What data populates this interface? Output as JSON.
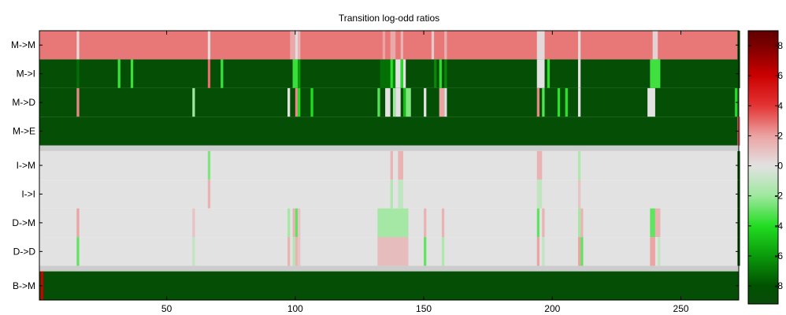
{
  "chart_data": {
    "type": "heatmap",
    "title": "Transition log-odd ratios",
    "xlabel": "",
    "ylabel": "",
    "rows": [
      "M->M",
      "M->I",
      "M->D",
      "M->E",
      "I->M",
      "I->I",
      "D->M",
      "D->D",
      "B->M"
    ],
    "x_range": [
      1,
      272
    ],
    "x_ticks": [
      50,
      100,
      150,
      200,
      250
    ],
    "x_tick_labels": [
      "50",
      "100",
      "150",
      "200",
      "250"
    ],
    "colorbar": {
      "range": [
        -9.2,
        9.0
      ],
      "ticks": [
        8,
        6,
        4,
        2,
        0,
        -2,
        -4,
        -6,
        -8
      ],
      "tick_labels": [
        "8",
        "6",
        "4",
        "2",
        "0",
        "-2",
        "-4",
        "-6",
        "-8"
      ],
      "colormap": [
        {
          "v": -9.2,
          "c": "#0a4a0a"
        },
        {
          "v": -8,
          "c": "#005200"
        },
        {
          "v": -6,
          "c": "#0a9a0a"
        },
        {
          "v": -4,
          "c": "#22dd22"
        },
        {
          "v": -2,
          "c": "#9ee89e"
        },
        {
          "v": 0,
          "c": "#e2e2e2"
        },
        {
          "v": 2,
          "c": "#eba3a3"
        },
        {
          "v": 4,
          "c": "#e43434"
        },
        {
          "v": 6,
          "c": "#cc0000"
        },
        {
          "v": 8,
          "c": "#7c0000"
        },
        {
          "v": 9,
          "c": "#600000"
        }
      ]
    },
    "separator_color": "#cccccc",
    "row_baselines": [
      2.8,
      -8.6,
      -8.6,
      -8.6,
      0,
      0,
      0,
      0,
      -8.6
    ],
    "anomalies": {
      "M->M": [
        {
          "x": [
            15
          ],
          "v": 0.3
        },
        {
          "x": [
            66
          ],
          "v": 0.3
        },
        {
          "x": [
            98,
            99
          ],
          "v": 1.8
        },
        {
          "x": [
            100
          ],
          "v": 0.2
        },
        {
          "x": [
            101
          ],
          "v": 1.5
        },
        {
          "x": [
            134
          ],
          "v": 2.0
        },
        {
          "x": [
            137,
            138
          ],
          "v": 1.8
        },
        {
          "x": [
            141
          ],
          "v": 1.5
        },
        {
          "x": [
            153
          ],
          "v": 0.8
        },
        {
          "x": [
            158
          ],
          "v": 1.6
        },
        {
          "x": [
            194,
            196
          ],
          "v": 0.3
        },
        {
          "x": [
            210
          ],
          "v": 0.3
        },
        {
          "x": [
            239,
            240
          ],
          "v": 0.5
        },
        {
          "x": [
            272
          ],
          "v": -8.6
        }
      ],
      "M->I": [
        {
          "x": [
            15
          ],
          "v": -7.2
        },
        {
          "x": [
            31
          ],
          "v": -3.6
        },
        {
          "x": [
            36
          ],
          "v": -3.6
        },
        {
          "x": [
            66
          ],
          "v": 3.0
        },
        {
          "x": [
            71
          ],
          "v": -3.6
        },
        {
          "x": [
            99,
            100
          ],
          "v": -3.6
        },
        {
          "x": [
            101
          ],
          "v": -6.0
        },
        {
          "x": [
            133,
            136
          ],
          "v": -7.2
        },
        {
          "x": [
            137
          ],
          "v": -3.8
        },
        {
          "x": [
            138
          ],
          "v": -6.5
        },
        {
          "x": [
            139,
            140
          ],
          "v": 0.0
        },
        {
          "x": [
            141
          ],
          "v": -4.0
        },
        {
          "x": [
            142
          ],
          "v": 0.0
        },
        {
          "x": [
            154
          ],
          "v": -6.5
        },
        {
          "x": [
            156
          ],
          "v": -3.8
        },
        {
          "x": [
            158
          ],
          "v": -6.5
        },
        {
          "x": [
            194,
            196
          ],
          "v": 0.0
        },
        {
          "x": [
            198
          ],
          "v": -3.8
        },
        {
          "x": [
            210
          ],
          "v": 0.0
        },
        {
          "x": [
            238,
            241
          ],
          "v": -3.5
        },
        {
          "x": [
            272
          ],
          "v": -8.6
        }
      ],
      "M->D": [
        {
          "x": [
            15
          ],
          "v": 2.5
        },
        {
          "x": [
            60
          ],
          "v": -2.0
        },
        {
          "x": [
            97
          ],
          "v": 0.0
        },
        {
          "x": [
            100
          ],
          "v": 2.5
        },
        {
          "x": [
            101
          ],
          "v": -4.0
        },
        {
          "x": [
            106
          ],
          "v": -4.0
        },
        {
          "x": [
            132
          ],
          "v": -3.2
        },
        {
          "x": [
            135,
            136
          ],
          "v": 0.0
        },
        {
          "x": [
            138
          ],
          "v": -2.0
        },
        {
          "x": [
            139,
            140
          ],
          "v": 0.0
        },
        {
          "x": [
            142
          ],
          "v": -5.0
        },
        {
          "x": [
            143,
            144
          ],
          "v": -2.5
        },
        {
          "x": [
            150
          ],
          "v": 0.0
        },
        {
          "x": [
            156,
            157
          ],
          "v": 2.0
        },
        {
          "x": [
            158
          ],
          "v": 0.0
        },
        {
          "x": [
            194
          ],
          "v": 2.5
        },
        {
          "x": [
            196
          ],
          "v": -3.2
        },
        {
          "x": [
            202
          ],
          "v": -3.8
        },
        {
          "x": [
            205
          ],
          "v": -3.8
        },
        {
          "x": [
            210
          ],
          "v": 0.0
        },
        {
          "x": [
            237,
            239
          ],
          "v": 0.0
        },
        {
          "x": [
            271
          ],
          "v": -4.0
        }
      ],
      "M->E": [
        {
          "x": [
            272
          ],
          "v": 3.0
        }
      ],
      "I->M": [
        {
          "x": [
            66
          ],
          "v": -2.5
        },
        {
          "x": [
            137
          ],
          "v": 1.5
        },
        {
          "x": [
            140,
            141
          ],
          "v": 1.5
        },
        {
          "x": [
            194,
            195
          ],
          "v": 1.5
        },
        {
          "x": [
            210
          ],
          "v": -1.5
        },
        {
          "x": [
            272
          ],
          "v": -8.6
        }
      ],
      "I->I": [
        {
          "x": [
            66
          ],
          "v": 1.5
        },
        {
          "x": [
            137
          ],
          "v": -1.5
        },
        {
          "x": [
            140,
            141
          ],
          "v": -1.0
        },
        {
          "x": [
            194,
            195
          ],
          "v": -1.0
        },
        {
          "x": [
            210
          ],
          "v": 1.0
        },
        {
          "x": [
            272
          ],
          "v": -8.6
        }
      ],
      "D->M": [
        {
          "x": [
            15
          ],
          "v": 2.0
        },
        {
          "x": [
            60
          ],
          "v": 1.0
        },
        {
          "x": [
            97
          ],
          "v": -1.8
        },
        {
          "x": [
            99
          ],
          "v": 1.5
        },
        {
          "x": [
            100
          ],
          "v": -3.0
        },
        {
          "x": [
            101
          ],
          "v": 1.0
        },
        {
          "x": [
            132,
            143
          ],
          "v": -1.8
        },
        {
          "x": [
            150
          ],
          "v": 1.5
        },
        {
          "x": [
            157
          ],
          "v": 1.5
        },
        {
          "x": [
            194
          ],
          "v": -3.0
        },
        {
          "x": [
            196
          ],
          "v": 1.5
        },
        {
          "x": [
            210
          ],
          "v": -1.8
        },
        {
          "x": [
            211
          ],
          "v": 1.5
        },
        {
          "x": [
            238,
            239
          ],
          "v": -3.0
        },
        {
          "x": [
            240,
            241
          ],
          "v": 1.5
        },
        {
          "x": [
            272
          ],
          "v": -8.6
        }
      ],
      "D->D": [
        {
          "x": [
            15
          ],
          "v": -3.0
        },
        {
          "x": [
            60
          ],
          "v": -1.0
        },
        {
          "x": [
            97
          ],
          "v": 1.5
        },
        {
          "x": [
            99
          ],
          "v": -1.5
        },
        {
          "x": [
            100
          ],
          "v": 1.5
        },
        {
          "x": [
            101
          ],
          "v": 1.0
        },
        {
          "x": [
            132,
            143
          ],
          "v": 1.2
        },
        {
          "x": [
            150
          ],
          "v": -3.0
        },
        {
          "x": [
            157
          ],
          "v": -1.5
        },
        {
          "x": [
            194
          ],
          "v": 2.0
        },
        {
          "x": [
            196
          ],
          "v": -1.0
        },
        {
          "x": [
            210
          ],
          "v": 2.0
        },
        {
          "x": [
            211
          ],
          "v": -3.0
        },
        {
          "x": [
            238,
            239
          ],
          "v": 2.0
        },
        {
          "x": [
            241
          ],
          "v": -1.0
        },
        {
          "x": [
            272
          ],
          "v": -8.6
        }
      ],
      "B->M": [
        {
          "x": [
            1
          ],
          "v": 6.0
        }
      ]
    }
  }
}
